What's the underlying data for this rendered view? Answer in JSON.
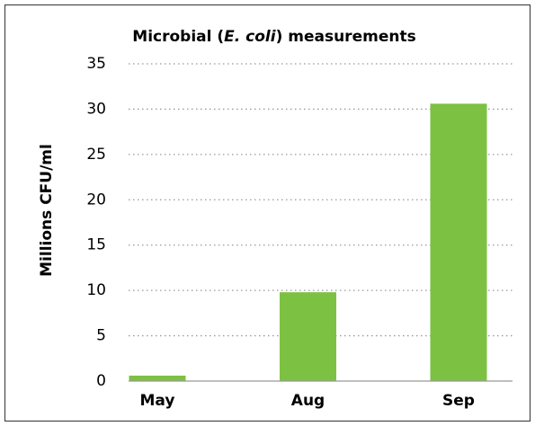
{
  "chart_data": {
    "type": "bar",
    "title": [
      "Microbial (",
      "E. coli",
      ") measurements"
    ],
    "title_italic": [
      false,
      true,
      false
    ],
    "ylabel": "Millions CFU/ml",
    "categories": [
      "May",
      "Aug",
      "Sep"
    ],
    "values": [
      0.6,
      9.8,
      30.6
    ],
    "color": "#7dc142",
    "ylim": [
      0,
      35
    ],
    "yticks": [
      0,
      5,
      10,
      15,
      20,
      25,
      30,
      35
    ],
    "grid": true
  }
}
